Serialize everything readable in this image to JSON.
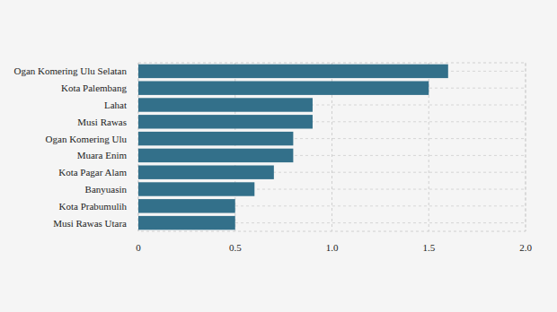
{
  "chart_data": {
    "type": "bar",
    "orientation": "horizontal",
    "categories": [
      "Ogan Komering Ulu Selatan",
      "Kota Palembang",
      "Lahat",
      "Musi Rawas",
      "Ogan Komering Ulu",
      "Muara Enim",
      "Kota Pagar Alam",
      "Banyuasin",
      "Kota Prabumulih",
      "Musi Rawas Utara"
    ],
    "values": [
      1.6,
      1.5,
      0.9,
      0.9,
      0.8,
      0.8,
      0.7,
      0.6,
      0.5,
      0.5
    ],
    "color": "#33708a",
    "xlim": [
      0,
      2
    ],
    "xticks": [
      0,
      0.5,
      {
        "value": 1,
        "label": "1.0"
      },
      1.5,
      {
        "value": 2,
        "label": "2.0"
      }
    ],
    "grid": true
  }
}
